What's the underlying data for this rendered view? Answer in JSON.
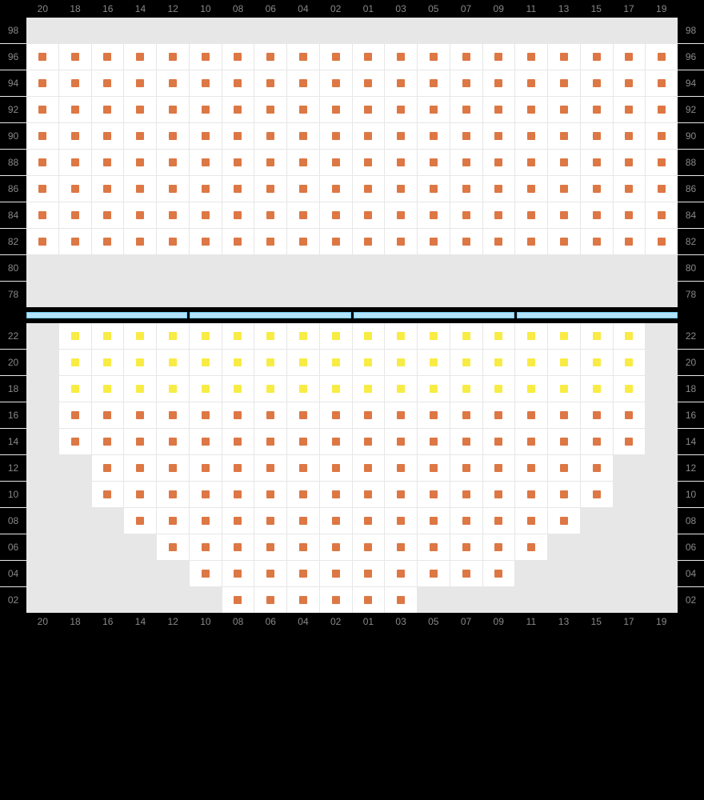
{
  "colors": {
    "orange": "#dd7744",
    "yellow": "#f8ec44",
    "cell_bg": "#ffffff",
    "empty_bg": "#e7e7e7",
    "outer_bg": "#000000",
    "label": "#888888",
    "divider_fill": "#b2e3fa",
    "divider_border": "#76c8ee"
  },
  "columns": [
    "20",
    "18",
    "16",
    "14",
    "12",
    "10",
    "08",
    "06",
    "04",
    "02",
    "01",
    "03",
    "05",
    "07",
    "09",
    "11",
    "13",
    "15",
    "17",
    "19"
  ],
  "upper": {
    "rows": [
      {
        "label": "98",
        "seats": "...................."
      },
      {
        "label": "96",
        "seats": "oooooooooooooooooooo"
      },
      {
        "label": "94",
        "seats": "oooooooooooooooooooo"
      },
      {
        "label": "92",
        "seats": "oooooooooooooooooooo"
      },
      {
        "label": "90",
        "seats": "oooooooooooooooooooo"
      },
      {
        "label": "88",
        "seats": "oooooooooooooooooooo"
      },
      {
        "label": "86",
        "seats": "oooooooooooooooooooo"
      },
      {
        "label": "84",
        "seats": "oooooooooooooooooooo"
      },
      {
        "label": "82",
        "seats": "oooooooooooooooooooo"
      },
      {
        "label": "80",
        "seats": "...................."
      },
      {
        "label": "78",
        "seats": "...................."
      }
    ]
  },
  "lower": {
    "rows": [
      {
        "label": "22",
        "seats": ".yyyyyyyyyyyyyyyyyy."
      },
      {
        "label": "20",
        "seats": ".yyyyyyyyyyyyyyyyyy."
      },
      {
        "label": "18",
        "seats": ".yyyyyyyyyyyyyyyyyy."
      },
      {
        "label": "16",
        "seats": ".oooooooooooooooooo."
      },
      {
        "label": "14",
        "seats": ".oooooooooooooooooo."
      },
      {
        "label": "12",
        "seats": "..oooooooooooooooo.."
      },
      {
        "label": "10",
        "seats": "..oooooooooooooooo.."
      },
      {
        "label": "08",
        "seats": "...oooooooooooooo..."
      },
      {
        "label": "06",
        "seats": "....oooooooooooo...."
      },
      {
        "label": "04",
        "seats": ".....oooooooooo....."
      },
      {
        "label": "02",
        "seats": "......oooooo........"
      }
    ]
  },
  "divider_bars": 4
}
